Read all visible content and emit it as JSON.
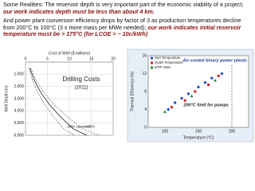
{
  "slide": {
    "paragraphs": [
      [
        {
          "text": "Some Realities: The reservoir depth is very important part of the economic viability of a project;  "
        },
        {
          "text": "our work indicates depth must be less than about 4 km.",
          "emphasis": true
        }
      ],
      [
        {
          "text": "And power plant conversion efficiency drops by factor of 3 as production temperatures decline from 200°C to 100°C (3 x more mass per MWe needed); "
        },
        {
          "text": "our work indicates initial reservoir temperature must be > 175°C (for LCOE = ~ 10c/kWh)",
          "emphasis": true
        }
      ]
    ]
  },
  "chart_data": [
    {
      "type": "line",
      "title": "Drilling Costs",
      "subtitle": "(2011)",
      "x_label": "Cost of Well ($ millions)",
      "y_label": "Well Depth (m)",
      "xlim": [
        0,
        20
      ],
      "xticks": [
        0,
        5,
        10,
        15,
        20
      ],
      "ylim": [
        0,
        6000
      ],
      "y_inverted": true,
      "yticks": [
        {
          "value": 1000,
          "label": "1,000"
        },
        {
          "value": 2000,
          "label": "2,000"
        },
        {
          "value": 3000,
          "label": "3,000"
        },
        {
          "value": 4000,
          "label": "4,000"
        },
        {
          "value": 5000,
          "label": "5,000"
        },
        {
          "value": 6000,
          "label": "6,000"
        }
      ],
      "grid": true,
      "series": [
        {
          "name": "-20%",
          "color": "#777777",
          "dashed": true,
          "x": [
            0.8,
            1.6,
            2.8,
            4.4,
            6.4,
            8.8,
            11.2
          ],
          "values": [
            500,
            1500,
            2500,
            3500,
            4500,
            5500,
            6000
          ]
        },
        {
          "name": "standard",
          "color": "#222222",
          "dashed": false,
          "x": [
            1,
            2,
            3.5,
            5.5,
            8,
            11,
            14
          ],
          "values": [
            500,
            1500,
            2500,
            3500,
            4500,
            5500,
            6000
          ]
        },
        {
          "name": "+20%",
          "color": "#777777",
          "dashed": true,
          "x": [
            1.2,
            2.4,
            4.2,
            6.6,
            9.6,
            13.2,
            16.8
          ],
          "values": [
            500,
            1500,
            2500,
            3500,
            4500,
            5500,
            6000
          ]
        }
      ]
    },
    {
      "type": "scatter",
      "title": "Air-cooled binary power plants",
      "x_label": "Temperature (°C)",
      "y_label": "Thermal Efficiency (%)",
      "xlim": [
        75,
        225
      ],
      "xticks": [
        100,
        150,
        200
      ],
      "ylim": [
        0,
        16
      ],
      "yticks": [
        0,
        4,
        8,
        12,
        16
      ],
      "grid": false,
      "annotation": "200°C limit for pumps",
      "limit_x": 200,
      "series": [
        {
          "name": "Inlet Temperature",
          "color": "#1f4fbf",
          "x": [
            105,
            115,
            125,
            135,
            150,
            160,
            170,
            185
          ],
          "values": [
            4,
            5.5,
            6.5,
            7.5,
            9,
            10,
            11,
            12
          ]
        },
        {
          "name": "Outlet Temperature",
          "color": "#cc2222",
          "x": [
            110,
            130,
            145,
            165,
            180
          ],
          "values": [
            4.5,
            6,
            8,
            9.5,
            11.5
          ]
        },
        {
          "name": "WTP 2006",
          "color": "#2a8a2a",
          "x": [
            100,
            140,
            175
          ],
          "values": [
            3.5,
            7,
            10.5
          ]
        }
      ]
    }
  ]
}
